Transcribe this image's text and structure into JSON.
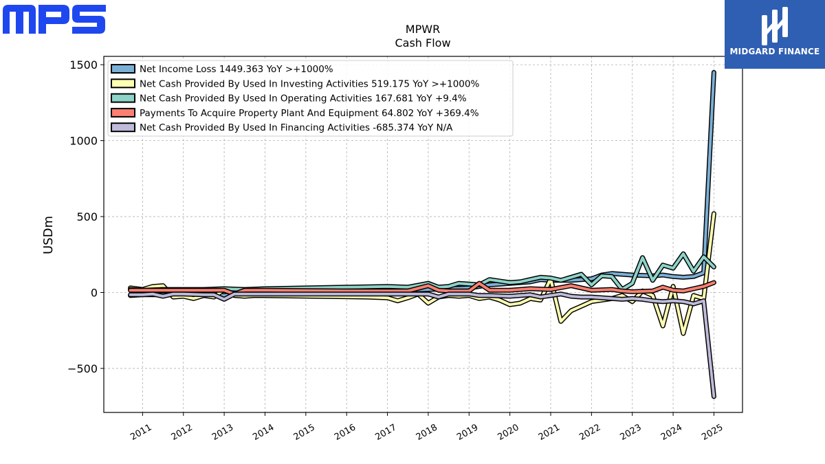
{
  "brand_left": "MPS",
  "brand_right": "MIDGARD FINANCE",
  "chart_data": {
    "type": "line",
    "title": "MPWR",
    "subtitle": "Cash Flow",
    "ylabel": "USDm",
    "xlabel": "",
    "xlim": [
      2010.05,
      2025.7
    ],
    "ylim": [
      -790,
      1555
    ],
    "yticks": [
      -500,
      0,
      500,
      1000,
      1500
    ],
    "xticks": [
      "2011",
      "2012",
      "2013",
      "2014",
      "2015",
      "2016",
      "2017",
      "2018",
      "2019",
      "2020",
      "2021",
      "2022",
      "2023",
      "2024",
      "2025"
    ],
    "grid": true,
    "legend_position": "top-left",
    "series": [
      {
        "name": "Net Income Loss  1449.363 YoY >+1000%",
        "color": "#7ab0d6",
        "x": [
          2010.7,
          2011.0,
          2011.5,
          2012.0,
          2012.5,
          2013.0,
          2013.5,
          2014.0,
          2016.0,
          2017.0,
          2018.0,
          2019.0,
          2019.5,
          2020.0,
          2020.5,
          2020.75,
          2021.0,
          2021.5,
          2022.0,
          2022.25,
          2022.5,
          2022.75,
          2023.0,
          2023.5,
          2023.75,
          2024.0,
          2024.25,
          2024.5,
          2024.75,
          2025.0
        ],
        "y": [
          -20,
          -15,
          -15,
          -10,
          -10,
          -20,
          -10,
          -10,
          0,
          10,
          20,
          30,
          50,
          60,
          70,
          85,
          80,
          80,
          90,
          115,
          125,
          120,
          115,
          110,
          115,
          105,
          100,
          105,
          130,
          1449
        ]
      },
      {
        "name": "Net Cash Provided By Used In Investing Activities  519.175 YoY >+1000%",
        "color": "#ffffb3",
        "x": [
          2010.7,
          2011.0,
          2011.25,
          2011.5,
          2011.75,
          2012.0,
          2012.25,
          2012.5,
          2012.75,
          2013.0,
          2013.25,
          2013.5,
          2013.75,
          2016.5,
          2017.0,
          2017.25,
          2017.5,
          2017.75,
          2018.0,
          2018.25,
          2018.5,
          2018.75,
          2019.0,
          2019.25,
          2019.5,
          2019.75,
          2020.0,
          2020.25,
          2020.5,
          2020.75,
          2021.0,
          2021.25,
          2021.5,
          2021.75,
          2022.0,
          2022.25,
          2022.5,
          2022.75,
          2023.0,
          2023.25,
          2023.5,
          2023.75,
          2024.0,
          2024.25,
          2024.5,
          2024.75,
          2025.0
        ],
        "y": [
          30,
          20,
          40,
          45,
          -30,
          -25,
          -40,
          -20,
          -30,
          20,
          -20,
          -25,
          -20,
          -30,
          -35,
          -55,
          -35,
          -10,
          -70,
          -30,
          -20,
          -25,
          -20,
          -40,
          -30,
          -50,
          -80,
          -70,
          -40,
          -50,
          90,
          -190,
          -120,
          -90,
          -60,
          -50,
          -40,
          -20,
          -60,
          10,
          -20,
          -220,
          40,
          -270,
          -20,
          -40,
          519
        ]
      },
      {
        "name": "Net Cash Provided By Used In Operating Activities  167.681 YoY +9.4%",
        "color": "#8dd3c7",
        "x": [
          2010.7,
          2011.0,
          2011.5,
          2012.0,
          2012.5,
          2013.0,
          2013.5,
          2014.0,
          2015.0,
          2016.0,
          2017.0,
          2017.5,
          2018.0,
          2018.25,
          2018.5,
          2018.75,
          2019.0,
          2019.25,
          2019.5,
          2019.75,
          2020.0,
          2020.25,
          2020.5,
          2020.75,
          2021.0,
          2021.25,
          2021.5,
          2021.75,
          2022.0,
          2022.25,
          2022.5,
          2022.75,
          2023.0,
          2023.25,
          2023.5,
          2023.75,
          2024.0,
          2024.25,
          2024.5,
          2024.75,
          2025.0
        ],
        "y": [
          20,
          15,
          20,
          20,
          20,
          25,
          20,
          25,
          30,
          35,
          40,
          35,
          60,
          35,
          40,
          60,
          55,
          50,
          85,
          75,
          65,
          70,
          85,
          100,
          95,
          80,
          100,
          120,
          50,
          110,
          105,
          20,
          60,
          230,
          80,
          180,
          160,
          255,
          140,
          235,
          168
        ]
      },
      {
        "name": "Payments To Acquire Property Plant And Equipment  64.802 YoY +369.4%",
        "color": "#fb8072",
        "x": [
          2010.7,
          2011.0,
          2011.5,
          2012.0,
          2012.5,
          2013.0,
          2013.25,
          2013.5,
          2014.0,
          2016.0,
          2017.0,
          2017.5,
          2018.0,
          2018.25,
          2018.5,
          2019.0,
          2019.25,
          2019.5,
          2020.0,
          2020.5,
          2021.0,
          2021.5,
          2022.0,
          2022.5,
          2022.75,
          2023.0,
          2023.5,
          2023.75,
          2024.0,
          2024.25,
          2024.5,
          2024.75,
          2025.0
        ],
        "y": [
          15,
          15,
          15,
          15,
          15,
          15,
          -10,
          15,
          15,
          10,
          10,
          10,
          45,
          15,
          10,
          10,
          60,
          15,
          15,
          25,
          20,
          45,
          15,
          20,
          10,
          5,
          10,
          35,
          15,
          10,
          25,
          40,
          65
        ]
      },
      {
        "name": "Net Cash Provided By Used In Financing Activities  -685.374 YoY N/A",
        "color": "#bebada",
        "x": [
          2010.7,
          2011.0,
          2011.25,
          2011.5,
          2011.75,
          2012.0,
          2012.5,
          2012.75,
          2013.0,
          2013.25,
          2013.5,
          2014.0,
          2015.0,
          2016.0,
          2017.0,
          2018.0,
          2018.25,
          2018.5,
          2019.0,
          2019.25,
          2019.5,
          2020.0,
          2020.5,
          2020.75,
          2021.0,
          2021.25,
          2021.5,
          2021.75,
          2022.0,
          2022.5,
          2022.75,
          2023.0,
          2023.25,
          2023.5,
          2023.75,
          2024.0,
          2024.25,
          2024.5,
          2024.75,
          2025.0
        ],
        "y": [
          -15,
          -15,
          -10,
          -25,
          -10,
          -10,
          -15,
          -15,
          -45,
          -10,
          -10,
          -10,
          -10,
          -10,
          -10,
          -10,
          -30,
          -10,
          -10,
          -20,
          -20,
          -25,
          -15,
          -30,
          -20,
          -10,
          -25,
          -30,
          -30,
          -40,
          -45,
          -40,
          -45,
          -55,
          -60,
          -55,
          -60,
          -75,
          -55,
          -685
        ]
      }
    ]
  }
}
